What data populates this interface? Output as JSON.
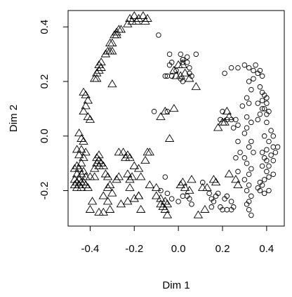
{
  "chart_data": {
    "type": "scatter",
    "title": "",
    "xlabel": "Dim 1",
    "ylabel": "Dim 2",
    "xlim": [
      -0.5,
      0.48
    ],
    "ylim": [
      -0.33,
      0.46
    ],
    "xticks": [
      -0.4,
      -0.2,
      0.0,
      0.2,
      0.4
    ],
    "xtick_labels": [
      "-0.4",
      "-0.2",
      "0.0",
      "0.2",
      "0.4"
    ],
    "yticks": [
      -0.2,
      0.0,
      0.2,
      0.4
    ],
    "ytick_labels": [
      "-0.2",
      "0.0",
      "0.2",
      "0.4"
    ],
    "grid": false,
    "legend": "none",
    "series": [
      {
        "marker": "triangle",
        "points": [
          [
            -0.22,
            0.43
          ],
          [
            -0.2,
            0.44
          ],
          [
            -0.19,
            0.42
          ],
          [
            -0.18,
            0.43
          ],
          [
            -0.16,
            0.44
          ],
          [
            -0.15,
            0.42
          ],
          [
            -0.14,
            0.43
          ],
          [
            -0.21,
            0.42
          ],
          [
            -0.23,
            0.41
          ],
          [
            -0.26,
            0.39
          ],
          [
            -0.27,
            0.39
          ],
          [
            -0.28,
            0.38
          ],
          [
            -0.28,
            0.37
          ],
          [
            -0.29,
            0.37
          ],
          [
            -0.3,
            0.34
          ],
          [
            -0.31,
            0.34
          ],
          [
            -0.32,
            0.31
          ],
          [
            -0.33,
            0.3
          ],
          [
            -0.31,
            0.31
          ],
          [
            -0.3,
            0.31
          ],
          [
            -0.35,
            0.27
          ],
          [
            -0.36,
            0.26
          ],
          [
            -0.35,
            0.25
          ],
          [
            -0.36,
            0.24
          ],
          [
            -0.37,
            0.23
          ],
          [
            -0.38,
            0.21
          ],
          [
            -0.37,
            0.21
          ],
          [
            -0.3,
            0.19
          ],
          [
            -0.43,
            0.16
          ],
          [
            -0.42,
            0.15
          ],
          [
            -0.41,
            0.13
          ],
          [
            -0.42,
            0.11
          ],
          [
            -0.43,
            0.09
          ],
          [
            -0.41,
            0.07
          ],
          [
            -0.4,
            0.06
          ],
          [
            -0.45,
            0.01
          ],
          [
            -0.44,
            -0.01
          ],
          [
            -0.43,
            -0.02
          ],
          [
            -0.46,
            -0.05
          ],
          [
            -0.44,
            -0.05
          ],
          [
            -0.42,
            -0.06
          ],
          [
            -0.45,
            -0.07
          ],
          [
            -0.43,
            -0.08
          ],
          [
            -0.36,
            -0.07
          ],
          [
            -0.37,
            -0.08
          ],
          [
            -0.36,
            -0.09
          ],
          [
            -0.35,
            -0.1
          ],
          [
            -0.37,
            -0.1
          ],
          [
            -0.34,
            -0.11
          ],
          [
            -0.36,
            -0.11
          ],
          [
            -0.38,
            -0.12
          ],
          [
            -0.44,
            -0.1
          ],
          [
            -0.46,
            -0.11
          ],
          [
            -0.45,
            -0.12
          ],
          [
            -0.47,
            -0.12
          ],
          [
            -0.46,
            -0.14
          ],
          [
            -0.44,
            -0.14
          ],
          [
            -0.45,
            -0.16
          ],
          [
            -0.47,
            -0.16
          ],
          [
            -0.46,
            -0.17
          ],
          [
            -0.44,
            -0.17
          ],
          [
            -0.45,
            -0.18
          ],
          [
            -0.47,
            -0.18
          ],
          [
            -0.46,
            -0.19
          ],
          [
            -0.44,
            -0.19
          ],
          [
            -0.43,
            -0.17
          ],
          [
            -0.42,
            -0.18
          ],
          [
            -0.41,
            -0.19
          ],
          [
            -0.43,
            -0.13
          ],
          [
            -0.42,
            -0.15
          ],
          [
            -0.27,
            -0.06
          ],
          [
            -0.25,
            -0.06
          ],
          [
            -0.23,
            -0.07
          ],
          [
            -0.24,
            -0.08
          ],
          [
            -0.22,
            -0.08
          ],
          [
            -0.2,
            -0.11
          ],
          [
            -0.14,
            -0.06
          ],
          [
            -0.13,
            -0.06
          ],
          [
            -0.15,
            -0.09
          ],
          [
            -0.33,
            -0.14
          ],
          [
            -0.32,
            -0.15
          ],
          [
            -0.4,
            -0.15
          ],
          [
            -0.38,
            -0.15
          ],
          [
            -0.31,
            -0.18
          ],
          [
            -0.32,
            -0.19
          ],
          [
            -0.28,
            -0.16
          ],
          [
            -0.27,
            -0.15
          ],
          [
            -0.23,
            -0.14
          ],
          [
            -0.22,
            -0.16
          ],
          [
            -0.21,
            -0.15
          ],
          [
            -0.18,
            -0.12
          ],
          [
            -0.17,
            -0.15
          ],
          [
            -0.22,
            -0.19
          ],
          [
            -0.18,
            -0.22
          ],
          [
            -0.3,
            -0.21
          ],
          [
            -0.34,
            -0.22
          ],
          [
            -0.39,
            -0.24
          ],
          [
            -0.32,
            -0.24
          ],
          [
            -0.4,
            -0.27
          ],
          [
            -0.36,
            -0.28
          ],
          [
            -0.34,
            -0.28
          ],
          [
            -0.31,
            -0.27
          ],
          [
            -0.26,
            -0.25
          ],
          [
            -0.23,
            -0.24
          ],
          [
            -0.2,
            -0.23
          ],
          [
            -0.17,
            -0.27
          ],
          [
            -0.13,
            -0.18
          ],
          [
            -0.1,
            -0.19
          ],
          [
            -0.1,
            -0.22
          ],
          [
            -0.08,
            -0.23
          ],
          [
            -0.08,
            -0.25
          ],
          [
            -0.06,
            -0.24
          ],
          [
            -0.07,
            -0.26
          ],
          [
            -0.05,
            -0.25
          ],
          [
            -0.06,
            -0.27
          ],
          [
            -0.05,
            -0.29
          ],
          [
            -0.04,
            -0.01
          ],
          [
            -0.06,
            0.09
          ],
          [
            -0.08,
            0.07
          ],
          [
            -0.02,
            0.1
          ],
          [
            -0.02,
            0.24
          ],
          [
            0.0,
            0.26
          ],
          [
            0.02,
            0.26
          ],
          [
            -0.01,
            0.22
          ],
          [
            0.01,
            0.22
          ],
          [
            0.05,
            0.21
          ],
          [
            0.03,
            0.23
          ],
          [
            0.08,
            0.18
          ],
          [
            0.02,
            -0.17
          ],
          [
            0.01,
            -0.18
          ],
          [
            0.03,
            -0.19
          ],
          [
            0.05,
            -0.2
          ],
          [
            0.11,
            -0.19
          ],
          [
            0.13,
            -0.19
          ],
          [
            0.16,
            -0.16
          ],
          [
            0.17,
            -0.17
          ],
          [
            0.06,
            -0.16
          ],
          [
            0.18,
            0.03
          ],
          [
            0.2,
            0.05
          ],
          [
            0.21,
            0.05
          ],
          [
            0.23,
            0.07
          ],
          [
            0.22,
            0.09
          ],
          [
            0.23,
            -0.14
          ],
          [
            0.26,
            -0.16
          ],
          [
            0.27,
            -0.18
          ],
          [
            -0.18,
            -0.22
          ],
          [
            0.12,
            -0.27
          ],
          [
            0.09,
            -0.29
          ]
        ]
      },
      {
        "marker": "circle",
        "points": [
          [
            -0.09,
            0.37
          ],
          [
            -0.11,
            0.09
          ],
          [
            -0.05,
            0.09
          ],
          [
            -0.06,
            0.22
          ],
          [
            -0.05,
            0.22
          ],
          [
            -0.03,
            0.27
          ],
          [
            -0.04,
            0.26
          ],
          [
            0.05,
            0.25
          ],
          [
            0.08,
            0.3
          ],
          [
            0.02,
            0.28
          ],
          [
            0.02,
            0.28
          ],
          [
            0.04,
            0.29
          ],
          [
            0.01,
            0.3
          ],
          [
            -0.04,
            0.3
          ],
          [
            -0.01,
            0.24
          ],
          [
            -0.03,
            0.22
          ],
          [
            0.01,
            0.21
          ],
          [
            0.02,
            0.2
          ],
          [
            0.04,
            0.27
          ],
          [
            0.05,
            0.23
          ],
          [
            0.06,
            0.22
          ],
          [
            0.02,
            0.27
          ],
          [
            -0.06,
            -0.15
          ],
          [
            -0.08,
            -0.2
          ],
          [
            -0.05,
            -0.21
          ],
          [
            -0.03,
            -0.23
          ],
          [
            0.0,
            -0.24
          ],
          [
            0.02,
            -0.22
          ],
          [
            0.04,
            -0.22
          ],
          [
            0.05,
            -0.23
          ],
          [
            0.06,
            -0.25
          ],
          [
            0.11,
            -0.17
          ],
          [
            0.14,
            -0.21
          ],
          [
            0.15,
            -0.23
          ],
          [
            0.16,
            -0.24
          ],
          [
            0.15,
            -0.26
          ],
          [
            0.19,
            -0.26
          ],
          [
            0.2,
            -0.27
          ],
          [
            0.22,
            -0.27
          ],
          [
            0.24,
            -0.27
          ],
          [
            0.25,
            -0.26
          ],
          [
            0.21,
            -0.23
          ],
          [
            0.24,
            -0.24
          ],
          [
            0.22,
            -0.22
          ],
          [
            0.18,
            -0.21
          ],
          [
            0.17,
            -0.22
          ],
          [
            0.2,
            0.09
          ],
          [
            0.22,
            0.06
          ],
          [
            0.19,
            0.06
          ],
          [
            0.24,
            0.06
          ],
          [
            0.26,
            0.06
          ],
          [
            0.25,
            0.03
          ],
          [
            0.27,
            0.04
          ],
          [
            0.27,
            -0.02
          ],
          [
            0.28,
            -0.06
          ],
          [
            0.26,
            -0.08
          ],
          [
            0.27,
            -0.13
          ],
          [
            0.21,
            0.23
          ],
          [
            0.24,
            0.25
          ],
          [
            0.27,
            0.25
          ],
          [
            0.3,
            0.26
          ],
          [
            0.32,
            0.25
          ],
          [
            0.34,
            0.24
          ],
          [
            0.36,
            0.23
          ],
          [
            0.34,
            0.21
          ],
          [
            0.32,
            0.2
          ],
          [
            0.33,
            0.17
          ],
          [
            0.31,
            0.14
          ],
          [
            0.32,
            0.12
          ],
          [
            0.29,
            0.11
          ],
          [
            0.31,
            0.07
          ],
          [
            0.33,
            0.05
          ],
          [
            0.31,
            0.03
          ],
          [
            0.3,
            0.01
          ],
          [
            0.33,
            -0.02
          ],
          [
            0.32,
            -0.04
          ],
          [
            0.34,
            -0.06
          ],
          [
            0.3,
            -0.08
          ],
          [
            0.31,
            -0.1
          ],
          [
            0.33,
            -0.12
          ],
          [
            0.32,
            -0.14
          ],
          [
            0.3,
            -0.16
          ],
          [
            0.32,
            -0.18
          ],
          [
            0.31,
            -0.2
          ],
          [
            0.33,
            -0.22
          ],
          [
            0.32,
            -0.24
          ],
          [
            0.31,
            -0.25
          ],
          [
            0.32,
            -0.27
          ],
          [
            0.33,
            -0.29
          ],
          [
            0.37,
            0.18
          ],
          [
            0.38,
            0.16
          ],
          [
            0.39,
            0.15
          ],
          [
            0.38,
            0.13
          ],
          [
            0.36,
            0.12
          ],
          [
            0.4,
            0.12
          ],
          [
            0.39,
            0.1
          ],
          [
            0.41,
            0.09
          ],
          [
            0.4,
            0.08
          ],
          [
            0.38,
            0.1
          ],
          [
            0.37,
            0.08
          ],
          [
            0.36,
            0.06
          ],
          [
            0.4,
            0.05
          ],
          [
            0.42,
            0.02
          ],
          [
            0.39,
            0.0
          ],
          [
            0.41,
            -0.02
          ],
          [
            0.43,
            -0.04
          ],
          [
            0.4,
            -0.05
          ],
          [
            0.38,
            -0.06
          ],
          [
            0.42,
            -0.07
          ],
          [
            0.39,
            -0.08
          ],
          [
            0.4,
            -0.09
          ],
          [
            0.41,
            -0.11
          ],
          [
            0.38,
            -0.11
          ],
          [
            0.4,
            -0.13
          ],
          [
            0.43,
            -0.14
          ],
          [
            0.41,
            -0.15
          ],
          [
            0.39,
            -0.16
          ],
          [
            0.37,
            -0.17
          ],
          [
            0.38,
            -0.18
          ],
          [
            0.36,
            -0.19
          ],
          [
            0.37,
            -0.2
          ],
          [
            0.39,
            -0.21
          ],
          [
            0.41,
            -0.2
          ],
          [
            0.43,
            -0.09
          ],
          [
            0.44,
            -0.06
          ],
          [
            0.45,
            -0.04
          ],
          [
            0.43,
            0.0
          ],
          [
            0.4,
            0.14
          ],
          [
            0.37,
            0.24
          ],
          [
            0.35,
            0.26
          ],
          [
            0.38,
            0.22
          ]
        ]
      }
    ]
  }
}
